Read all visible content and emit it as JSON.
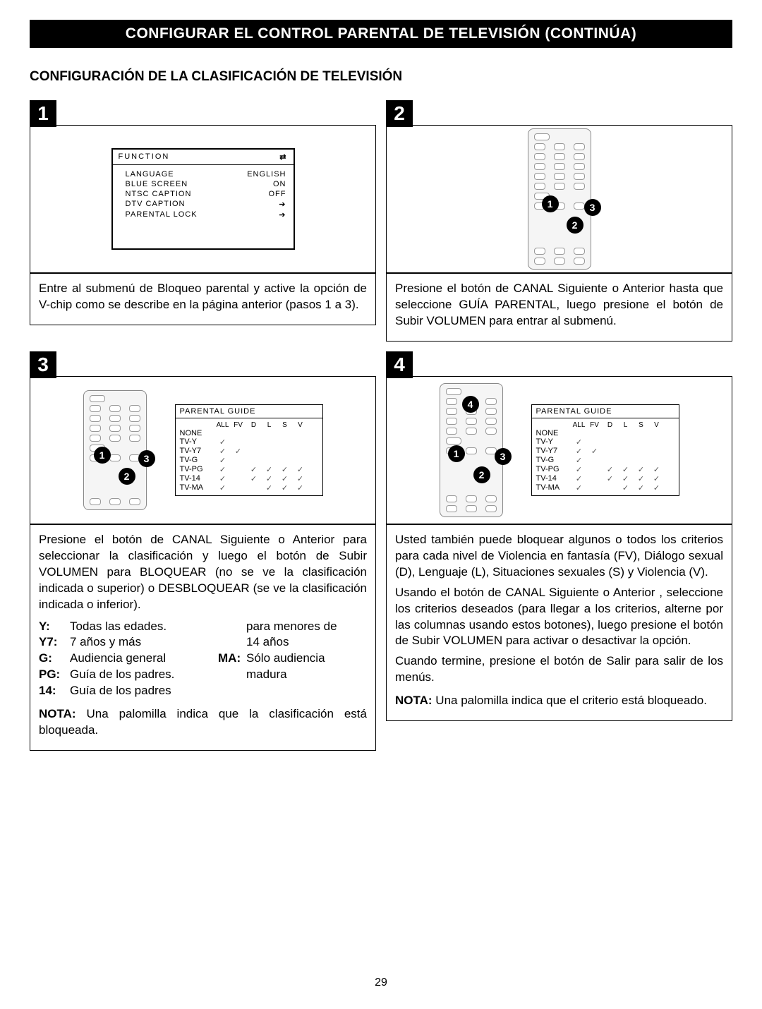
{
  "title": "CONFIGURAR EL CONTROL PARENTAL DE TELEVISIÓN (CONTINÚA)",
  "subtitle": "CONFIGURACIÓN DE LA CLASIFICACIÓN DE TELEVISIÓN",
  "step1": {
    "num": "1",
    "menu": {
      "header": "FUNCTION",
      "rows": [
        {
          "k": "LANGUAGE",
          "v": "ENGLISH"
        },
        {
          "k": "BLUE SCREEN",
          "v": "ON"
        },
        {
          "k": "NTSC CAPTION",
          "v": "OFF"
        },
        {
          "k": "DTV CAPTION",
          "v": "➔"
        },
        {
          "k": "PARENTAL LOCK",
          "v": "➔"
        }
      ]
    },
    "text": "Entre al submenú de Bloqueo parental y active la opción de V-chip como se describe en la página anterior (pasos 1 a 3)."
  },
  "step2": {
    "num": "2",
    "text": "Presione el botón de CANAL Siguiente     o Anterior hasta que seleccione GUÍA PARENTAL, luego presione el botón de Subir VOLUMEN     para entrar al submenú."
  },
  "step3": {
    "num": "3",
    "pg_title": "PARENTAL GUIDE",
    "pg_cols": [
      "ALL",
      "FV",
      "D",
      "L",
      "S",
      "V"
    ],
    "pg_rows": [
      {
        "lbl": "NONE",
        "c": [
          0,
          0,
          0,
          0,
          0,
          0
        ]
      },
      {
        "lbl": "TV-Y",
        "c": [
          1,
          0,
          0,
          0,
          0,
          0
        ]
      },
      {
        "lbl": "TV-Y7",
        "c": [
          1,
          1,
          0,
          0,
          0,
          0
        ]
      },
      {
        "lbl": "TV-G",
        "c": [
          1,
          0,
          0,
          0,
          0,
          0
        ]
      },
      {
        "lbl": "TV-PG",
        "c": [
          1,
          0,
          1,
          1,
          1,
          1
        ]
      },
      {
        "lbl": "TV-14",
        "c": [
          1,
          0,
          1,
          1,
          1,
          1
        ]
      },
      {
        "lbl": "TV-MA",
        "c": [
          1,
          0,
          0,
          1,
          1,
          1
        ]
      }
    ],
    "text": "Presione el botón de CANAL Siguiente    o Anterior    para seleccionar la clasificación y luego el botón de Subir VOLUMEN    para BLOQUEAR (no se ve la clasificación indicada o superior) o DESBLOQUEAR (se ve la clasificación indicada o inferior).",
    "defs_left": [
      {
        "k": "Y:",
        "v": "Todas las edades."
      },
      {
        "k": "Y7:",
        "v": "7 años y más"
      },
      {
        "k": "G:",
        "v": "Audiencia general"
      },
      {
        "k": "PG:",
        "v": "Guía de los padres."
      },
      {
        "k": "14:",
        "v": "Guía de los padres"
      }
    ],
    "defs_right": [
      {
        "k": "",
        "v": "para menores de"
      },
      {
        "k": "",
        "v": "14 años"
      },
      {
        "k": "MA:",
        "v": "Sólo audiencia"
      },
      {
        "k": "",
        "v": "madura"
      },
      {
        "k": "",
        "v": ""
      }
    ],
    "note_label": "NOTA:",
    "note": " Una palomilla indica que la clasificación está bloqueada."
  },
  "step4": {
    "num": "4",
    "p1": "Usted también puede bloquear algunos o todos los criterios para cada nivel de Violencia en fantasía (FV), Diálogo sexual (D), Lenguaje (L), Situaciones sexuales (S) y Violencia (V).",
    "p2": "Usando el botón de CANAL Siguiente    o Anterior   , seleccione los criterios deseados (para llegar a los criterios, alterne por las columnas usando estos botones), luego presione el botón de Subir VOLUMEN    para activar o desactivar la opción.",
    "p3": "Cuando termine, presione el botón de Salir    para salir de los menús.",
    "note_label": "NOTA:",
    "note": " Una palomilla indica que el criterio está bloqueado."
  },
  "page_number": "29"
}
